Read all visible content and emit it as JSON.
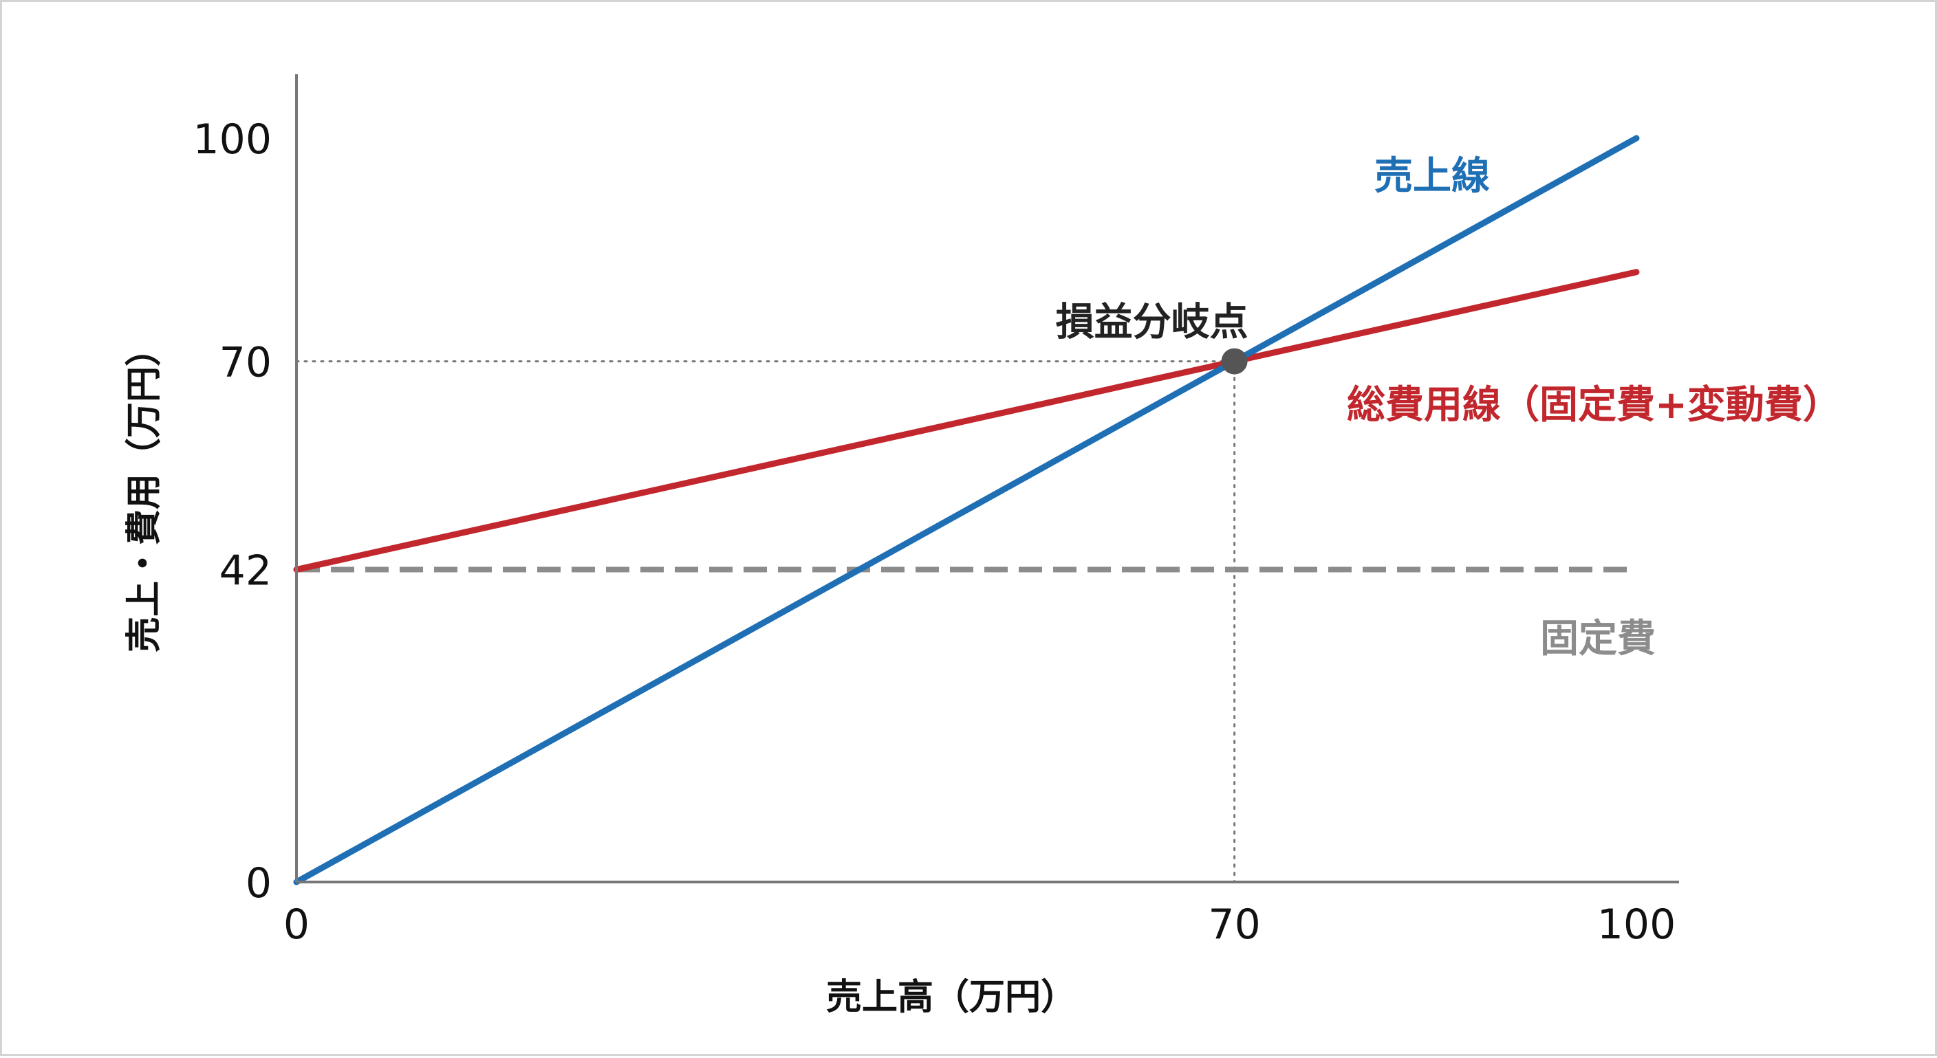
{
  "chart_data": {
    "type": "line",
    "title": "",
    "xlabel": "売上高（万円）",
    "ylabel": "売上・費用（万円）",
    "xlim": [
      0,
      100
    ],
    "ylim": [
      0,
      100
    ],
    "x_ticks": [
      "0",
      "70",
      "100"
    ],
    "y_ticks": [
      "0",
      "42",
      "70",
      "100"
    ],
    "series": [
      {
        "name": "売上線",
        "color": "#1f6fb5",
        "x": [
          0,
          100
        ],
        "y": [
          0,
          100
        ]
      },
      {
        "name": "総費用線（固定費+変動費）",
        "color": "#c1272d",
        "x": [
          0,
          100
        ],
        "y": [
          42,
          82
        ]
      },
      {
        "name": "固定費",
        "color": "#8c8c8c",
        "style": "dashed",
        "x": [
          0,
          100
        ],
        "y": [
          42,
          42
        ]
      }
    ],
    "annotations": [
      {
        "label": "損益分岐点",
        "x": 70,
        "y": 70,
        "color": "#555555"
      }
    ],
    "grid": false
  }
}
